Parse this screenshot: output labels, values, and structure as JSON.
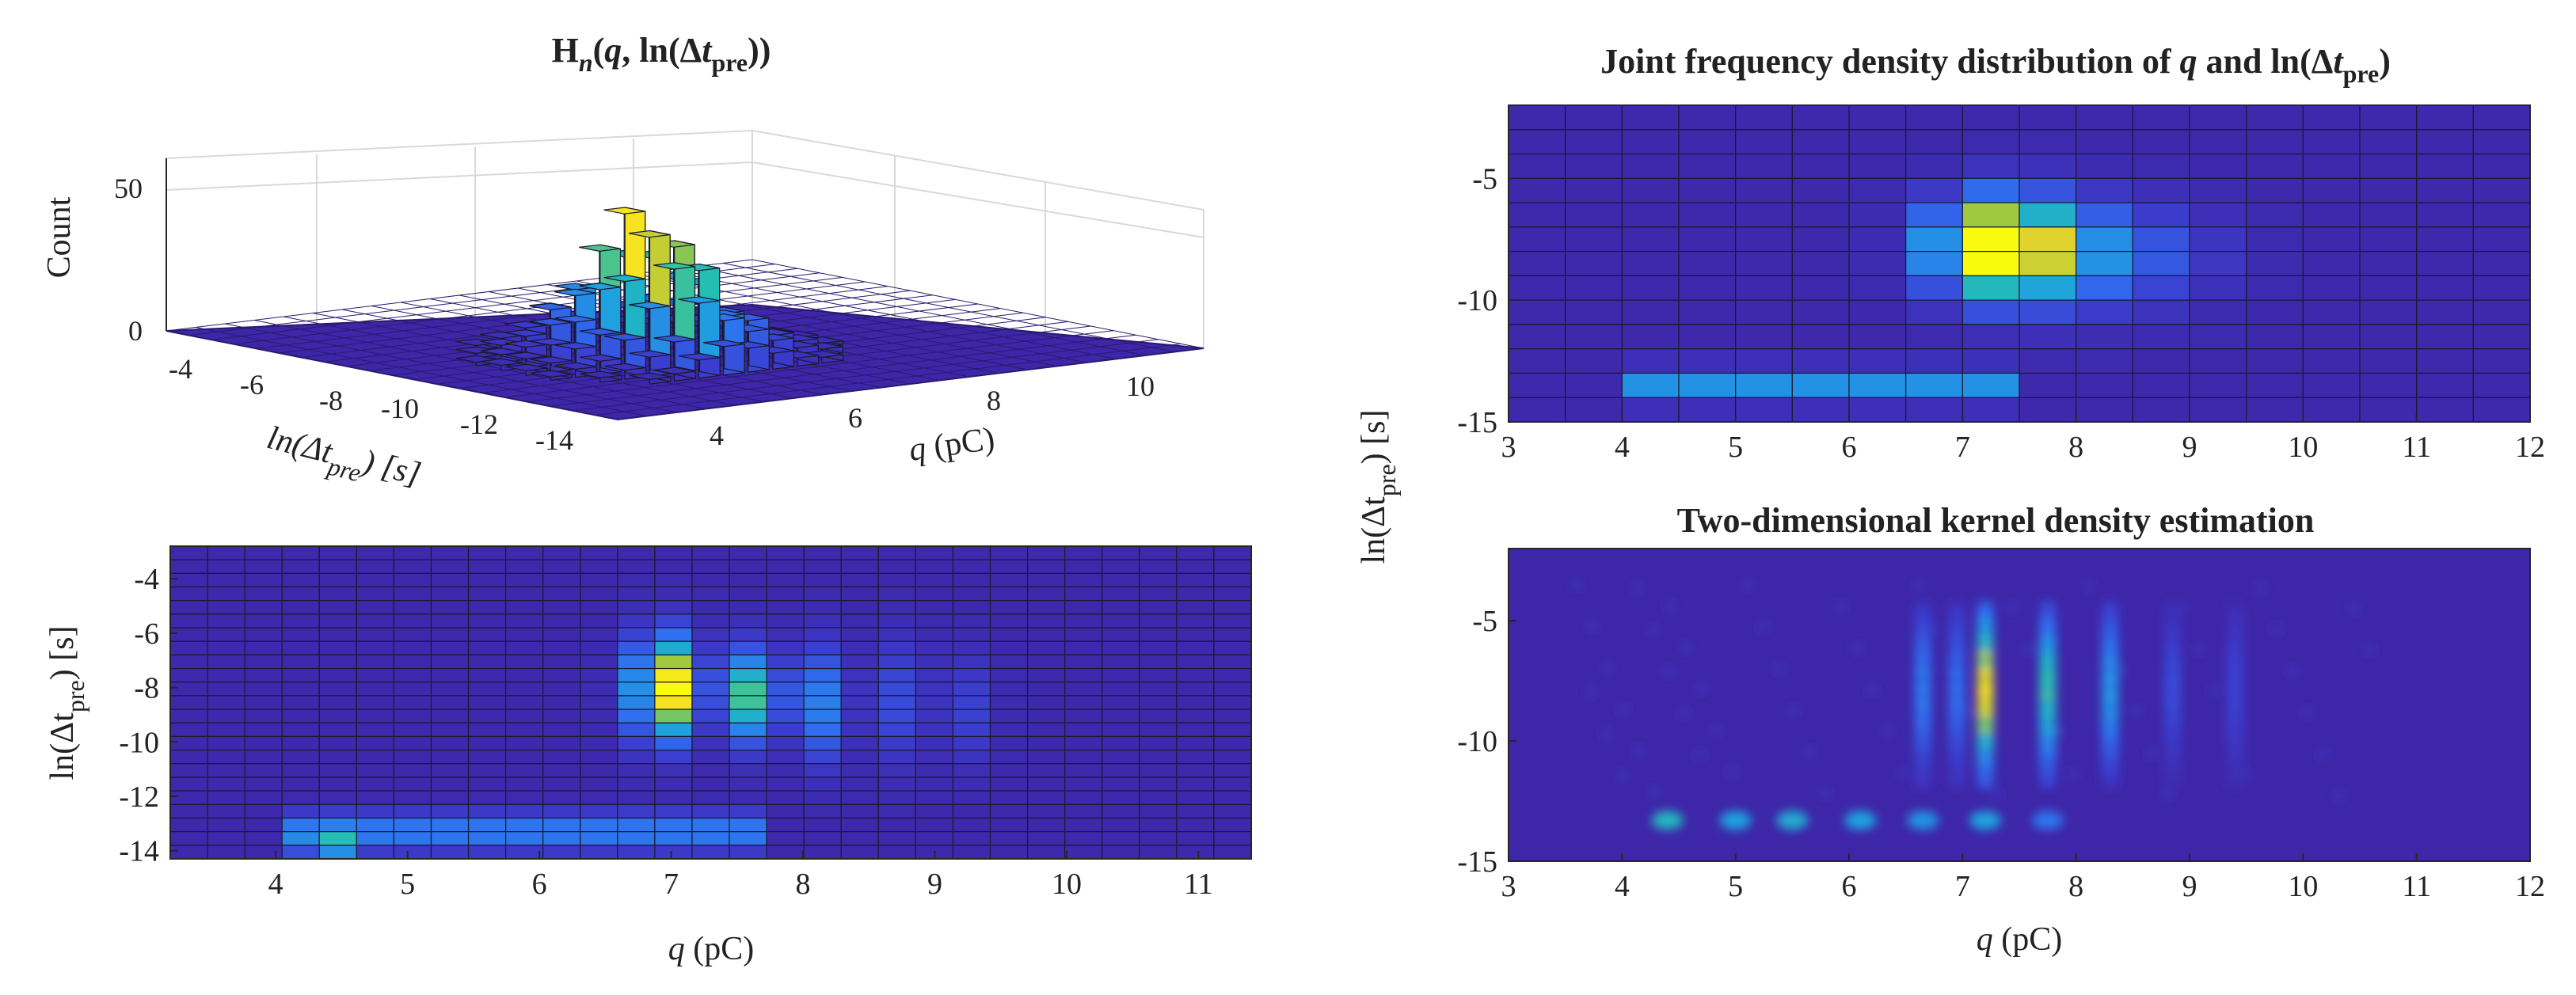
{
  "colors": {
    "base": "#3e26a8",
    "low": "#3b3ecf",
    "mid_low": "#2f6ff0",
    "mid": "#1fa2de",
    "mid_high": "#25c0b0",
    "high": "#a6c93a",
    "top": "#f5d72a",
    "peak": "#f9fb0e",
    "cell_border": "#1a1a2e",
    "axis": "#262626"
  },
  "chart_data": [
    {
      "id": "hist3d",
      "type": "bar3d",
      "title_main": "H",
      "title_sub": "n",
      "title_rest": "(",
      "title_q": "q",
      "title_mid": ", ln(Δ",
      "title_t": "t",
      "title_pre": "pre",
      "title_end": "))",
      "zlabel": "Count",
      "z_ticks": [
        "0",
        "50"
      ],
      "ylabel_main": "ln(Δt",
      "ylabel_sub": "pre",
      "ylabel_end": ") [s]",
      "y_ticks": [
        "-4",
        "-6",
        "-8",
        "-10",
        "-12",
        "-14"
      ],
      "xlabel": "q (pC)",
      "xlabel_q": "q",
      "xlabel_unit": " (pC)",
      "x_ticks": [
        "4",
        "6",
        "8",
        "10"
      ],
      "zlim": [
        0,
        60
      ],
      "profile_q": [
        4.5,
        5.0,
        5.5,
        6.0,
        6.5,
        7.0,
        7.5,
        8.0,
        8.5,
        9.0,
        9.5,
        10.0
      ],
      "profile_counts": [
        2,
        4,
        8,
        16,
        32,
        55,
        46,
        28,
        18,
        10,
        5,
        2
      ]
    },
    {
      "id": "bins2d",
      "type": "heatmap",
      "xlabel_q": "q",
      "xlabel_unit": " (pC)",
      "ylabel_main": "ln(Δt",
      "ylabel_sub": "pre",
      "ylabel_end": ") [s]",
      "xlim": [
        3.2,
        11.4
      ],
      "ylim": [
        -14.3,
        -2.8
      ],
      "x_ticks": [
        "4",
        "5",
        "6",
        "7",
        "8",
        "9",
        "10",
        "11"
      ],
      "y_ticks": [
        "-4",
        "-6",
        "-8",
        "-10",
        "-12",
        "-14"
      ],
      "nx": 29,
      "ny": 23,
      "hot_spots": [
        {
          "q": 7.05,
          "lnt": -8.0,
          "amp": 1.0,
          "sq": 0.13,
          "st": 1.2
        },
        {
          "q": 7.65,
          "lnt": -8.3,
          "amp": 0.72,
          "sq": 0.13,
          "st": 1.1
        },
        {
          "q": 6.75,
          "lnt": -8.0,
          "amp": 0.32,
          "sq": 0.12,
          "st": 1.3
        },
        {
          "q": 8.2,
          "lnt": -8.6,
          "amp": 0.35,
          "sq": 0.12,
          "st": 1.4
        },
        {
          "q": 8.8,
          "lnt": -8.5,
          "amp": 0.2,
          "sq": 0.12,
          "st": 1.5
        },
        {
          "q": 9.3,
          "lnt": -8.8,
          "amp": 0.12,
          "sq": 0.12,
          "st": 1.3
        }
      ],
      "bottom_band": {
        "lnt": -13.3,
        "q_from": 4.0,
        "q_to": 7.7,
        "amp": 0.33
      },
      "bottom_spot": {
        "q": 4.4,
        "lnt": -13.8,
        "amp": 0.45
      }
    },
    {
      "id": "joint",
      "type": "heatmap",
      "title": "Joint frequency density distribution of ",
      "title_q": "q",
      "title_and": " and ln(Δ",
      "title_t": "t",
      "title_pre": "pre",
      "title_end": ")",
      "xlim": [
        3,
        12
      ],
      "ylim": [
        -15,
        -2
      ],
      "x_ticks": [
        "3",
        "4",
        "5",
        "6",
        "7",
        "8",
        "9",
        "10",
        "11",
        "12"
      ],
      "y_ticks": [
        "-5",
        "-10",
        "-15"
      ],
      "nx": 18,
      "ny": 13,
      "hot_spots": [
        {
          "q": 7.25,
          "lnt": -7.8,
          "amp": 1.0,
          "sq": 0.35,
          "st": 1.3
        },
        {
          "q": 7.75,
          "lnt": -8.0,
          "amp": 0.45,
          "sq": 0.4,
          "st": 1.4
        },
        {
          "q": 8.5,
          "lnt": -8.2,
          "amp": 0.2,
          "sq": 0.5,
          "st": 1.4
        }
      ],
      "bottom_band": {
        "lnt": -13.5,
        "q_from": 4.0,
        "q_to": 7.5,
        "amp": 0.38
      }
    },
    {
      "id": "kde",
      "type": "heatmap",
      "title": "Two-dimensional kernel density estimation",
      "xlabel_q": "q",
      "xlabel_unit": " (pC)",
      "xlim": [
        3,
        12
      ],
      "ylim": [
        -15,
        -2
      ],
      "x_ticks": [
        "3",
        "4",
        "5",
        "6",
        "7",
        "8",
        "9",
        "10",
        "11",
        "12"
      ],
      "y_ticks": [
        "-5",
        "-10",
        "-15"
      ],
      "streaks": [
        {
          "q": 6.65,
          "amp": 0.35
        },
        {
          "q": 6.95,
          "amp": 0.3
        },
        {
          "q": 7.2,
          "amp": 0.95
        },
        {
          "q": 7.75,
          "amp": 0.65
        },
        {
          "q": 8.3,
          "amp": 0.45
        },
        {
          "q": 8.85,
          "amp": 0.18
        },
        {
          "q": 9.4,
          "amp": 0.15
        }
      ],
      "bottom_blobs": [
        {
          "q": 4.4,
          "amp": 0.55
        },
        {
          "q": 5.0,
          "amp": 0.45
        },
        {
          "q": 5.5,
          "amp": 0.5
        },
        {
          "q": 6.1,
          "amp": 0.45
        },
        {
          "q": 6.65,
          "amp": 0.4
        },
        {
          "q": 7.2,
          "amp": 0.45
        },
        {
          "q": 7.75,
          "amp": 0.3
        }
      ]
    }
  ],
  "shared_ylabel_main": "ln(Δt",
  "shared_ylabel_sub": "pre",
  "shared_ylabel_end": ") [s]"
}
